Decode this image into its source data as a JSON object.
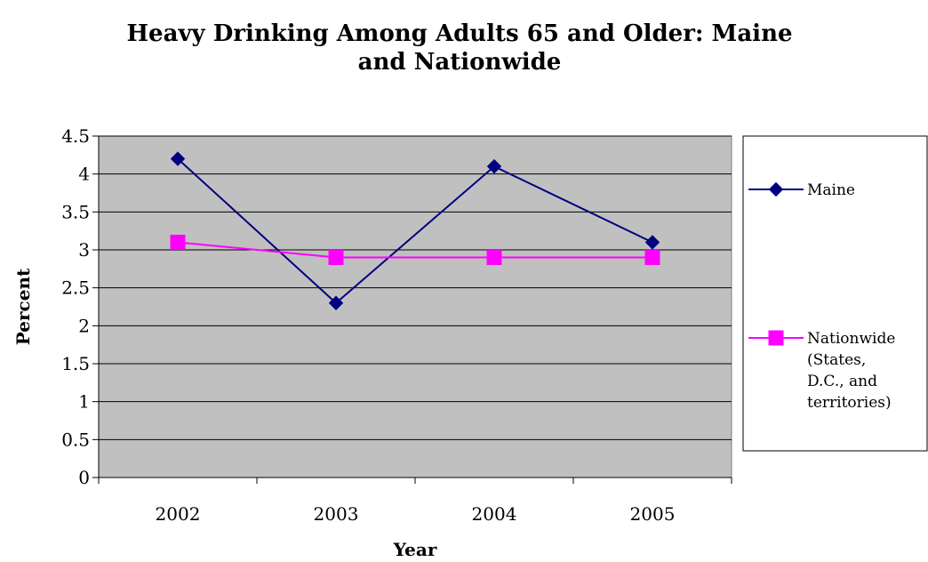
{
  "chart_data": {
    "type": "line",
    "title_lines": [
      "Heavy Drinking Among Adults 65 and Older: Maine",
      "and Nationwide"
    ],
    "xlabel": "Year",
    "ylabel": "Percent",
    "categories": [
      "2002",
      "2003",
      "2004",
      "2005"
    ],
    "ylim": [
      0,
      4.5
    ],
    "yticks": [
      "0",
      "0.5",
      "1",
      "1.5",
      "2",
      "2.5",
      "3",
      "3.5",
      "4",
      "4.5"
    ],
    "grid": true,
    "legend_position": "right",
    "plot_background": "#c0c0c0",
    "series": [
      {
        "name": "Maine",
        "name_lines": [
          "Maine"
        ],
        "values": [
          4.2,
          2.3,
          4.1,
          3.1
        ],
        "color": "#000080",
        "marker": "diamond"
      },
      {
        "name": "Nationwide (States, D.C., and territories)",
        "name_lines": [
          "Nationwide",
          "(States,",
          "D.C., and",
          "territories)"
        ],
        "values": [
          3.1,
          2.9,
          2.9,
          2.9
        ],
        "color": "#ff00ff",
        "marker": "square"
      }
    ]
  }
}
